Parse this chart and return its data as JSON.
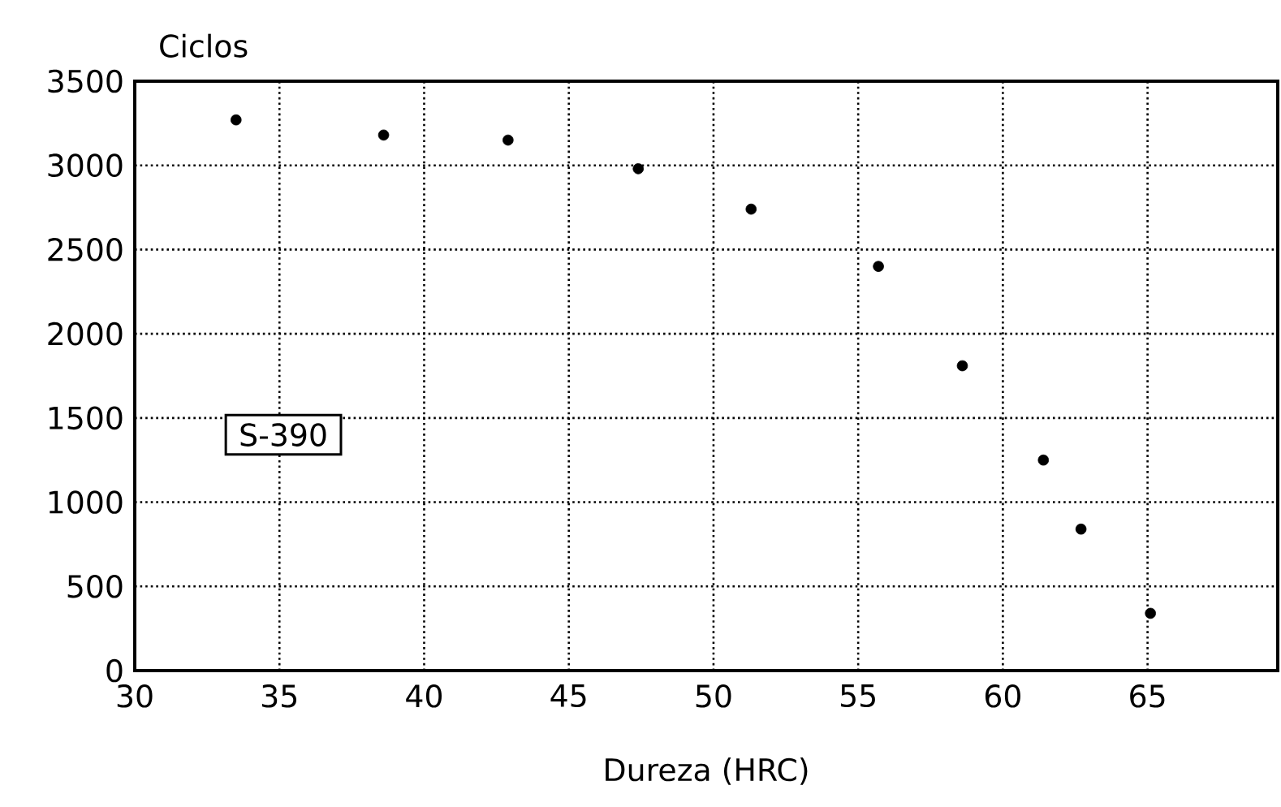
{
  "chart_data": {
    "type": "scatter",
    "xlabel": "Dureza (HRC)",
    "ylabel": "Ciclos",
    "xlim": [
      30,
      69.5
    ],
    "ylim": [
      0,
      3500
    ],
    "xticks": [
      30,
      35,
      40,
      45,
      50,
      55,
      60,
      65
    ],
    "yticks": [
      0,
      500,
      1000,
      1500,
      2000,
      2500,
      3000,
      3500
    ],
    "grid": true,
    "legend": "left",
    "marker": "circle",
    "series": [
      {
        "name": "S-390",
        "color": "#000000",
        "x": [
          33.5,
          38.6,
          42.9,
          47.4,
          51.3,
          55.7,
          58.6,
          61.4,
          62.7,
          65.1
        ],
        "values": [
          3270,
          3180,
          3150,
          2980,
          2740,
          2400,
          1810,
          1250,
          840,
          340
        ]
      }
    ]
  }
}
